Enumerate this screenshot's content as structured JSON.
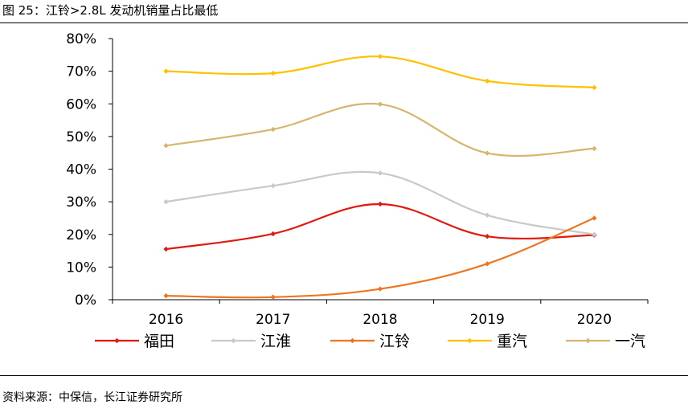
{
  "figure": {
    "title": "图  25：江铃>2.8L 发动机销量占比最低",
    "source": "资料来源：中保信，长江证券研究所"
  },
  "chart_data": {
    "type": "line",
    "title": "江铃>2.8L 发动机销量占比最低",
    "xlabel": "",
    "ylabel": "",
    "categories": [
      "2016",
      "2017",
      "2018",
      "2019",
      "2020"
    ],
    "y_ticks": [
      "0%",
      "10%",
      "20%",
      "30%",
      "40%",
      "50%",
      "60%",
      "70%",
      "80%"
    ],
    "ylim": [
      0,
      80
    ],
    "grid": false,
    "smooth": true,
    "legend_position": "bottom",
    "series": [
      {
        "name": "福田",
        "color": "#E01A0F",
        "values": [
          15.5,
          20.2,
          29.3,
          19.4,
          19.8
        ]
      },
      {
        "name": "江淮",
        "color": "#C9C9C9",
        "values": [
          30.0,
          34.9,
          38.8,
          25.9,
          20.0
        ]
      },
      {
        "name": "江铃",
        "color": "#EE7621",
        "values": [
          1.2,
          0.8,
          3.3,
          11.0,
          25.0
        ]
      },
      {
        "name": "重汽",
        "color": "#FFC000",
        "values": [
          70.0,
          69.4,
          74.5,
          67.0,
          65.0
        ]
      },
      {
        "name": "一汽",
        "color": "#D6B56E",
        "values": [
          47.2,
          52.2,
          59.9,
          44.9,
          46.3
        ]
      }
    ]
  }
}
